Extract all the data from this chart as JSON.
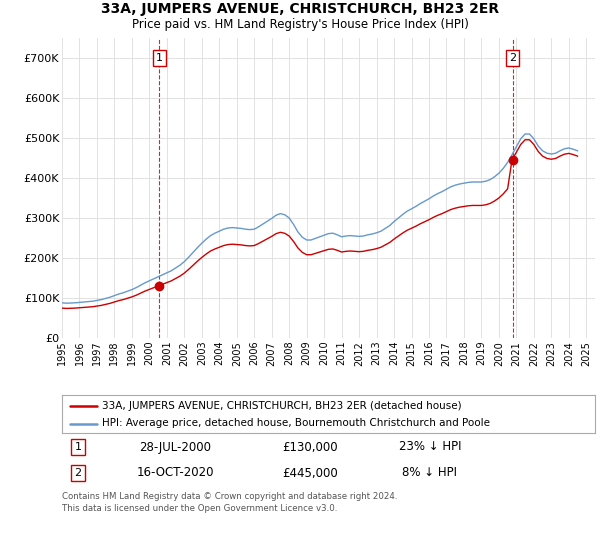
{
  "title": "33A, JUMPERS AVENUE, CHRISTCHURCH, BH23 2ER",
  "subtitle": "Price paid vs. HM Land Registry's House Price Index (HPI)",
  "legend_line1": "33A, JUMPERS AVENUE, CHRISTCHURCH, BH23 2ER (detached house)",
  "legend_line2": "HPI: Average price, detached house, Bournemouth Christchurch and Poole",
  "footnote": "Contains HM Land Registry data © Crown copyright and database right 2024.\nThis data is licensed under the Open Government Licence v3.0.",
  "transaction1_date": "28-JUL-2000",
  "transaction1_price": "£130,000",
  "transaction1_hpi": "23% ↓ HPI",
  "transaction2_date": "16-OCT-2020",
  "transaction2_price": "£445,000",
  "transaction2_hpi": "8% ↓ HPI",
  "line_color_property": "#cc0000",
  "line_color_hpi": "#6699cc",
  "vline_color": "#cc0000",
  "grid_color": "#dddddd",
  "background_color": "#ffffff",
  "ylim": [
    0,
    750000
  ],
  "yticks": [
    0,
    100000,
    200000,
    300000,
    400000,
    500000,
    600000,
    700000
  ],
  "ytick_labels": [
    "£0",
    "£100K",
    "£200K",
    "£300K",
    "£400K",
    "£500K",
    "£600K",
    "£700K"
  ],
  "hpi_dates": [
    1995.0,
    1995.25,
    1995.5,
    1995.75,
    1996.0,
    1996.25,
    1996.5,
    1996.75,
    1997.0,
    1997.25,
    1997.5,
    1997.75,
    1998.0,
    1998.25,
    1998.5,
    1998.75,
    1999.0,
    1999.25,
    1999.5,
    1999.75,
    2000.0,
    2000.25,
    2000.5,
    2000.75,
    2001.0,
    2001.25,
    2001.5,
    2001.75,
    2002.0,
    2002.25,
    2002.5,
    2002.75,
    2003.0,
    2003.25,
    2003.5,
    2003.75,
    2004.0,
    2004.25,
    2004.5,
    2004.75,
    2005.0,
    2005.25,
    2005.5,
    2005.75,
    2006.0,
    2006.25,
    2006.5,
    2006.75,
    2007.0,
    2007.25,
    2007.5,
    2007.75,
    2008.0,
    2008.25,
    2008.5,
    2008.75,
    2009.0,
    2009.25,
    2009.5,
    2009.75,
    2010.0,
    2010.25,
    2010.5,
    2010.75,
    2011.0,
    2011.25,
    2011.5,
    2011.75,
    2012.0,
    2012.25,
    2012.5,
    2012.75,
    2013.0,
    2013.25,
    2013.5,
    2013.75,
    2014.0,
    2014.25,
    2014.5,
    2014.75,
    2015.0,
    2015.25,
    2015.5,
    2015.75,
    2016.0,
    2016.25,
    2016.5,
    2016.75,
    2017.0,
    2017.25,
    2017.5,
    2017.75,
    2018.0,
    2018.25,
    2018.5,
    2018.75,
    2019.0,
    2019.25,
    2019.5,
    2019.75,
    2020.0,
    2020.25,
    2020.5,
    2020.75,
    2021.0,
    2021.25,
    2021.5,
    2021.75,
    2022.0,
    2022.25,
    2022.5,
    2022.75,
    2023.0,
    2023.25,
    2023.5,
    2023.75,
    2024.0,
    2024.25,
    2024.5
  ],
  "hpi_values": [
    88000,
    87000,
    87500,
    88000,
    89000,
    90000,
    91000,
    92000,
    94000,
    96000,
    99000,
    102000,
    106000,
    110000,
    113000,
    117000,
    121000,
    126000,
    132000,
    138000,
    143000,
    148000,
    153000,
    158000,
    163000,
    168000,
    175000,
    182000,
    191000,
    202000,
    214000,
    226000,
    237000,
    247000,
    256000,
    262000,
    267000,
    272000,
    275000,
    276000,
    275000,
    274000,
    272000,
    271000,
    272000,
    278000,
    285000,
    292000,
    299000,
    307000,
    311000,
    308000,
    300000,
    284000,
    265000,
    252000,
    245000,
    245000,
    249000,
    253000,
    257000,
    261000,
    262000,
    258000,
    253000,
    255000,
    256000,
    255000,
    254000,
    255000,
    258000,
    260000,
    263000,
    267000,
    274000,
    281000,
    291000,
    300000,
    309000,
    317000,
    323000,
    329000,
    336000,
    342000,
    348000,
    355000,
    361000,
    366000,
    372000,
    378000,
    382000,
    385000,
    387000,
    389000,
    390000,
    390000,
    390000,
    392000,
    396000,
    403000,
    412000,
    424000,
    439000,
    458000,
    478000,
    498000,
    510000,
    510000,
    498000,
    480000,
    468000,
    462000,
    460000,
    462000,
    468000,
    473000,
    475000,
    472000,
    468000
  ],
  "marker1_x": 2000.578,
  "marker1_y": 130000,
  "marker2_x": 2020.786,
  "marker2_y": 445000,
  "xmin": 1995.0,
  "xmax": 2025.5
}
